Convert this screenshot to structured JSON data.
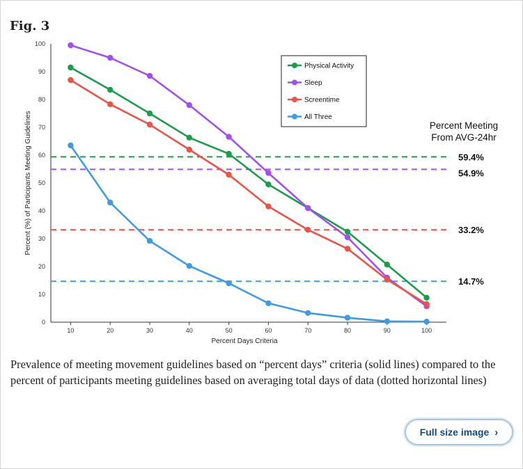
{
  "figure": {
    "label": "Fig. 3",
    "caption": "Prevalence of meeting movement guidelines based on “percent days” criteria (solid lines) compared to the percent of participants meeting guidelines based on averaging total days of data (dotted horizontal lines)",
    "full_size_label": "Full size image",
    "full_size_icon": "chevron-right-icon"
  },
  "chart_data": {
    "type": "line",
    "x": [
      10,
      20,
      30,
      40,
      50,
      60,
      70,
      80,
      90,
      100
    ],
    "xlabel": "Percent Days Criteria",
    "ylabel": "Percent (%) of Participants Meeting Guidelines",
    "xlim": [
      5,
      105
    ],
    "ylim": [
      0,
      100
    ],
    "yticks": [
      0,
      10,
      20,
      30,
      40,
      50,
      60,
      70,
      80,
      90,
      100
    ],
    "grid": false,
    "legend_position": "top-center",
    "series": [
      {
        "name": "Physical Activity",
        "color": "#1a9e4b",
        "values": [
          91.5,
          83.5,
          75,
          66.3,
          60.5,
          49.5,
          41,
          32.5,
          20.7,
          8.8
        ]
      },
      {
        "name": "Sleep",
        "color": "#a24ff0",
        "values": [
          99.5,
          95,
          88.5,
          78,
          66.6,
          53.6,
          41,
          30.5,
          16,
          5.7
        ]
      },
      {
        "name": "Screentime",
        "color": "#ea5346",
        "values": [
          87,
          78.3,
          71,
          62,
          53,
          41.6,
          33.2,
          26.4,
          15.3,
          6.5
        ]
      },
      {
        "name": "All Three",
        "color": "#3f9be3",
        "values": [
          63.5,
          43,
          29.2,
          20.2,
          14,
          6.8,
          3.3,
          1.6,
          0.3,
          0.2
        ]
      }
    ],
    "reference_lines": {
      "title_line1": "Percent Meeting",
      "title_line2": "From AVG-24hr",
      "lines": [
        {
          "label": "59.4%",
          "value": 59.4,
          "color": "#1a9e4b"
        },
        {
          "label": "54.9%",
          "value": 54.9,
          "color": "#a24ff0"
        },
        {
          "label": "33.2%",
          "value": 33.2,
          "color": "#ea5346"
        },
        {
          "label": "14.7%",
          "value": 14.7,
          "color": "#3f9be3"
        }
      ]
    }
  }
}
